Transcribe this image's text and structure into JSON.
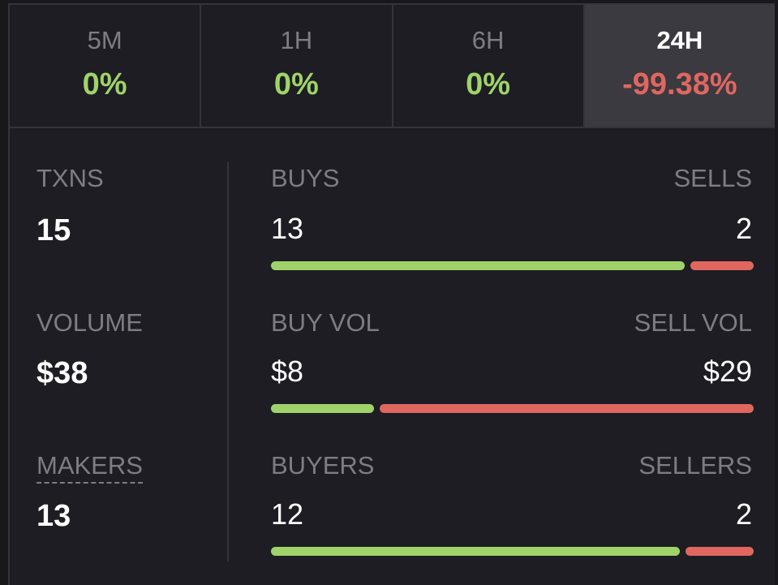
{
  "timeframes": [
    {
      "label": "5M",
      "change": "0%",
      "trend": "up",
      "active": false
    },
    {
      "label": "1H",
      "change": "0%",
      "trend": "up",
      "active": false
    },
    {
      "label": "6H",
      "change": "0%",
      "trend": "up",
      "active": false
    },
    {
      "label": "24H",
      "change": "-99.38%",
      "trend": "down",
      "active": true
    }
  ],
  "stats": {
    "txns": {
      "label": "TXNS",
      "value": "15"
    },
    "volume": {
      "label": "VOLUME",
      "value": "$38"
    },
    "makers": {
      "label": "MAKERS",
      "value": "13"
    }
  },
  "breakdown": {
    "buys": {
      "left_label": "BUYS",
      "left_value": "13",
      "right_label": "SELLS",
      "right_value": "2",
      "buy_fraction": 0.867
    },
    "volume": {
      "left_label": "BUY VOL",
      "left_value": "$8",
      "right_label": "SELL VOL",
      "right_value": "$29",
      "buy_fraction": 0.216
    },
    "buyers": {
      "left_label": "BUYERS",
      "left_value": "12",
      "right_label": "SELLERS",
      "right_value": "2",
      "buy_fraction": 0.857
    }
  },
  "colors": {
    "positive": "#9fd36a",
    "negative": "#e06660",
    "background": "#1d1d23",
    "active_tab": "#3a3a40"
  }
}
